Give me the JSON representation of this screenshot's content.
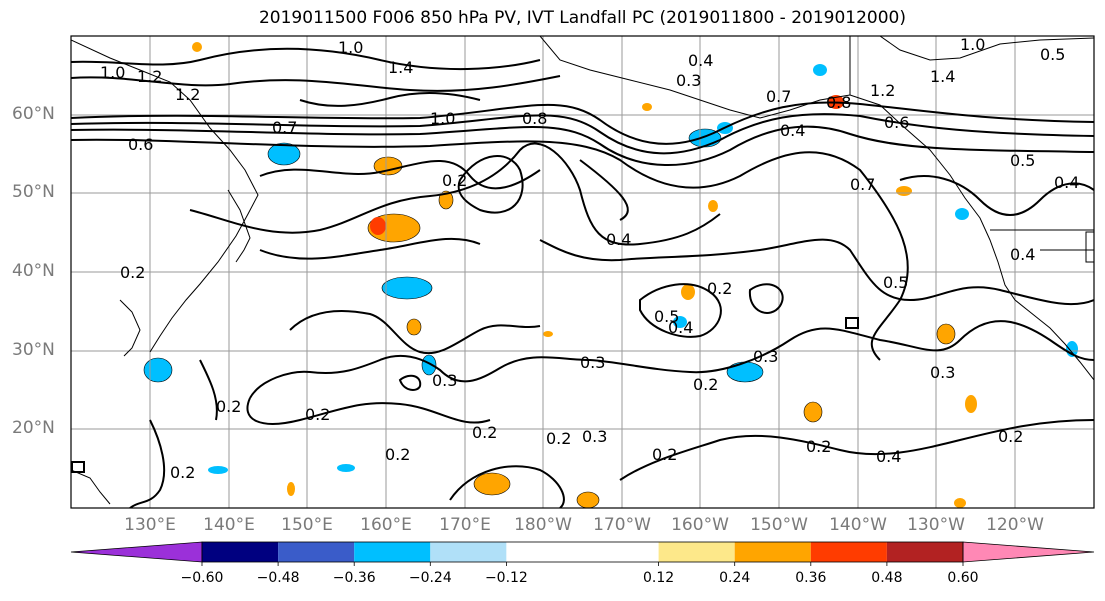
{
  "title": "2019011500 F006 850 hPa PV, IVT Landfall PC (2019011800 - 2019012000)",
  "map": {
    "lat_labels": [
      "60°N",
      "50°N",
      "40°N",
      "30°N",
      "20°N"
    ],
    "lon_labels": [
      "130°E",
      "140°E",
      "150°E",
      "160°E",
      "170°E",
      "180°W",
      "170°W",
      "160°W",
      "150°W",
      "140°W",
      "130°W",
      "120°W"
    ],
    "contour_labels": [
      "1.0",
      "1.0",
      "1.2",
      "1.4",
      "1.2",
      "1.0",
      "0.4",
      "0.3",
      "0.7",
      "0.8",
      "0.6",
      "0.7",
      "1.0",
      "1.4",
      "1.2",
      "0.5",
      "0.7",
      "0.8",
      "0.6",
      "0.4",
      "0.2",
      "0.4",
      "0.5",
      "0.2",
      "0.5",
      "0.4",
      "0.3",
      "0.2",
      "0.3",
      "0.3",
      "0.2",
      "0.2",
      "0.2",
      "0.3",
      "0.2",
      "0.2",
      "0.2",
      "0.2",
      "0.2",
      "0.4",
      "0.2",
      "0.3",
      "0.4",
      "0.5",
      "0.4",
      "0.2"
    ],
    "colors": {
      "land_outline": "#000000",
      "grid": "#9a9a9a",
      "contour": "#000000"
    }
  },
  "colorbar": {
    "tick_labels": [
      "−0.60",
      "−0.48",
      "−0.36",
      "−0.24",
      "−0.12",
      "0.12",
      "0.24",
      "0.36",
      "0.48",
      "0.60"
    ],
    "levels": [
      -0.72,
      -0.6,
      -0.48,
      -0.36,
      -0.24,
      -0.12,
      0.12,
      0.24,
      0.36,
      0.48,
      0.6,
      0.72
    ],
    "colors": [
      "#9b30d9",
      "#000080",
      "#3a5cc9",
      "#00bfff",
      "#b0e0f8",
      "#ffffff",
      "#fde88a",
      "#ffa500",
      "#ff3c00",
      "#b22222",
      "#ff88b5",
      "#ffffff"
    ]
  }
}
